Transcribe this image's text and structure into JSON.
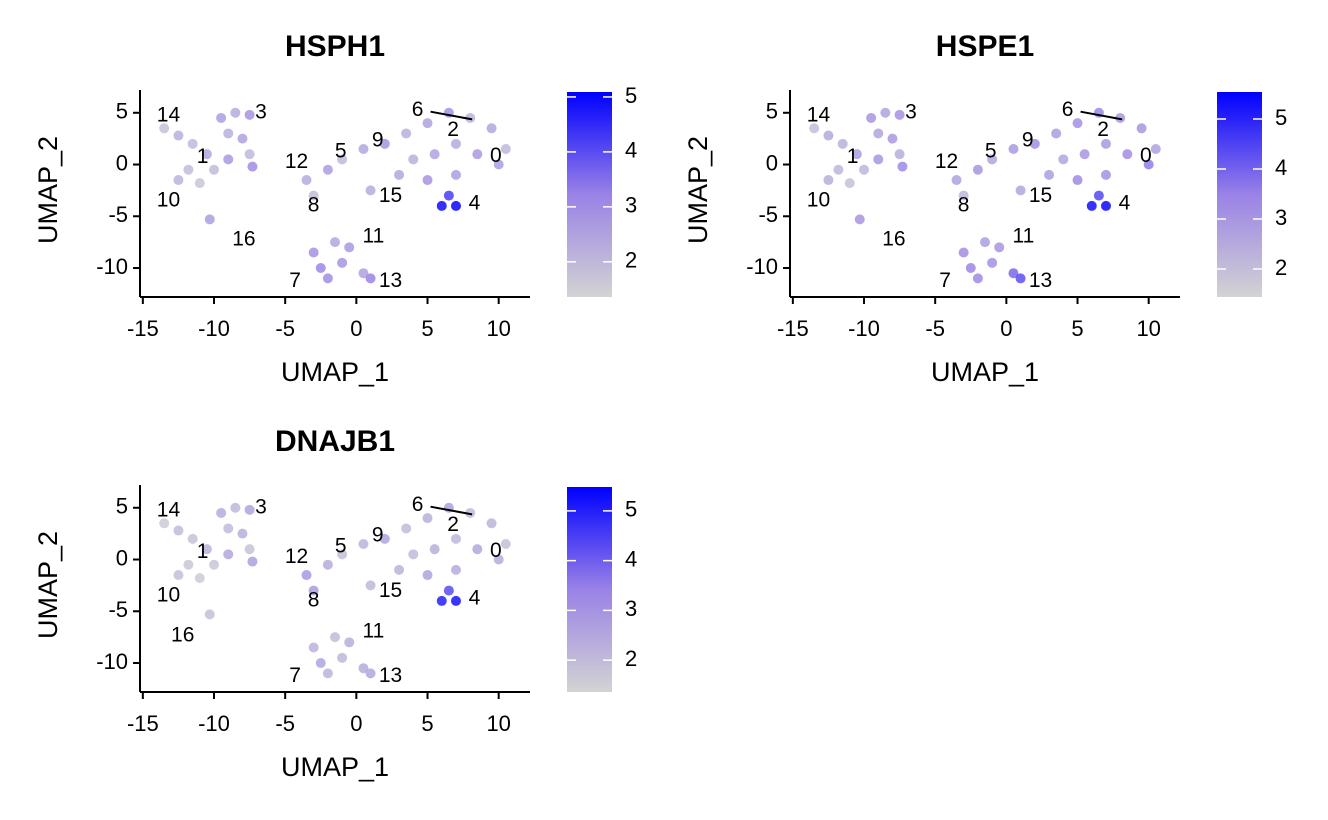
{
  "chart_data": [
    {
      "type": "scatter",
      "title": "HSPH1",
      "xlabel": "UMAP_1",
      "ylabel": "UMAP_2",
      "xlim": [
        -15.2,
        12.2
      ],
      "ylim": [
        -12.8,
        7.2
      ],
      "xticks": [
        -15,
        -10,
        -5,
        0,
        5,
        10
      ],
      "yticks": [
        5,
        0,
        -5,
        -10
      ],
      "clim": [
        1.36,
        5.09
      ],
      "cticks": [
        2,
        3,
        4,
        5
      ],
      "colors": [
        "#d3d3d3",
        "#9a82e6",
        "#0000ff"
      ],
      "x": [
        -13.5,
        -12.5,
        -11.5,
        -10.5,
        -11.8,
        -12.5,
        -11,
        -9.5,
        -8.5,
        -7.5,
        -9,
        -8,
        -7.5,
        -9,
        -10,
        -7.3,
        -10.3,
        -3,
        -1.5,
        -0.5,
        -2.5,
        -1,
        0.5,
        -2,
        1,
        -3.5,
        -2,
        -1,
        0.5,
        2,
        3.5,
        5,
        6.5,
        8,
        9.5,
        10.5,
        10,
        8.5,
        7,
        5.5,
        4,
        3,
        5,
        7,
        6.5,
        6,
        7,
        -3,
        1
      ],
      "y": [
        3.5,
        2.8,
        2,
        1,
        -0.5,
        -1.5,
        -1.8,
        4.5,
        5,
        4.8,
        3,
        2.5,
        1,
        0.5,
        -0.5,
        -0.2,
        -5.3,
        -8.5,
        -7.5,
        -8,
        -10,
        -9.5,
        -10.5,
        -11,
        -11,
        -1.5,
        -0.5,
        0.5,
        1.5,
        2,
        3,
        4,
        5,
        4.5,
        3.5,
        1.5,
        0,
        1,
        2,
        1,
        0.5,
        -1,
        -1.5,
        -1,
        -3,
        -4,
        -4,
        -3,
        -2.5
      ],
      "values": [
        1.8,
        2.2,
        2.0,
        2.4,
        1.9,
        2.1,
        1.7,
        2.6,
        2.3,
        2.8,
        2.2,
        2.5,
        2.0,
        2.7,
        1.9,
        3.0,
        2.6,
        2.9,
        2.4,
        2.7,
        3.1,
        2.8,
        2.5,
        3.0,
        3.2,
        2.3,
        2.6,
        2.0,
        2.4,
        2.8,
        2.2,
        2.5,
        2.9,
        2.1,
        2.4,
        2.0,
        2.6,
        2.7,
        2.3,
        2.5,
        2.2,
        2.4,
        2.8,
        2.6,
        4.2,
        4.9,
        5.0,
        1.9,
        2.3
      ],
      "annotations": [
        {
          "text": "14",
          "x": -13.2,
          "y": 4.7
        },
        {
          "text": "3",
          "x": -6.7,
          "y": 5.0
        },
        {
          "text": "1",
          "x": -10.8,
          "y": 0.7
        },
        {
          "text": "10",
          "x": -13.2,
          "y": -3.5
        },
        {
          "text": "16",
          "x": -7.9,
          "y": -7.3
        },
        {
          "text": "12",
          "x": -4.2,
          "y": 0.2
        },
        {
          "text": "5",
          "x": -1.1,
          "y": 1.2
        },
        {
          "text": "9",
          "x": 1.5,
          "y": 2.3
        },
        {
          "text": "6",
          "x": 4.3,
          "y": 5.2
        },
        {
          "text": "2",
          "x": 6.8,
          "y": 3.3
        },
        {
          "text": "0",
          "x": 9.8,
          "y": 0.8
        },
        {
          "text": "15",
          "x": 2.4,
          "y": -3.1
        },
        {
          "text": "4",
          "x": 8.3,
          "y": -3.8
        },
        {
          "text": "8",
          "x": -3.0,
          "y": -4.0
        },
        {
          "text": "11",
          "x": 1.2,
          "y": -7.0
        },
        {
          "text": "7",
          "x": -4.3,
          "y": -11.3
        },
        {
          "text": "13",
          "x": 2.4,
          "y": -11.3
        }
      ]
    },
    {
      "type": "scatter",
      "title": "HSPE1",
      "xlabel": "UMAP_1",
      "ylabel": "UMAP_2",
      "xlim": [
        -15.2,
        12.2
      ],
      "ylim": [
        -12.8,
        7.2
      ],
      "xticks": [
        -15,
        -10,
        -5,
        0,
        5,
        10
      ],
      "yticks": [
        5,
        0,
        -5,
        -10
      ],
      "clim": [
        1.44,
        5.54
      ],
      "cticks": [
        2,
        3,
        4,
        5
      ],
      "colors": [
        "#d3d3d3",
        "#9a82e6",
        "#0000ff"
      ],
      "x": [
        -13.5,
        -12.5,
        -11.5,
        -10.5,
        -11.8,
        -12.5,
        -11,
        -9.5,
        -8.5,
        -7.5,
        -9,
        -8,
        -7.5,
        -9,
        -10,
        -7.3,
        -10.3,
        -3,
        -1.5,
        -0.5,
        -2.5,
        -1,
        0.5,
        -2,
        1,
        -3.5,
        -2,
        -1,
        0.5,
        2,
        3.5,
        5,
        6.5,
        8,
        9.5,
        10.5,
        10,
        8.5,
        7,
        5.5,
        4,
        3,
        5,
        7,
        6.5,
        6,
        7,
        -3,
        1
      ],
      "y": [
        3.5,
        2.8,
        2,
        1,
        -0.5,
        -1.5,
        -1.8,
        4.5,
        5,
        4.8,
        3,
        2.5,
        1,
        0.5,
        -0.5,
        -0.2,
        -5.3,
        -8.5,
        -7.5,
        -8,
        -10,
        -9.5,
        -10.5,
        -11,
        -11,
        -1.5,
        -0.5,
        0.5,
        1.5,
        2,
        3,
        4,
        5,
        4.5,
        3.5,
        1.5,
        0,
        1,
        2,
        1,
        0.5,
        -1,
        -1.5,
        -1,
        -3,
        -4,
        -4,
        -3,
        -2.5
      ],
      "values": [
        2.0,
        2.5,
        2.3,
        2.8,
        2.2,
        2.4,
        1.9,
        3.0,
        2.7,
        3.1,
        2.6,
        2.9,
        2.4,
        3.0,
        2.2,
        3.3,
        3.0,
        3.2,
        2.8,
        3.0,
        3.4,
        3.1,
        3.9,
        3.3,
        4.3,
        2.7,
        3.0,
        2.6,
        2.9,
        3.2,
        2.8,
        3.1,
        3.4,
        2.9,
        3.0,
        2.7,
        3.6,
        3.2,
        2.9,
        3.0,
        2.6,
        2.8,
        3.3,
        3.1,
        4.4,
        5.3,
        5.4,
        2.2,
        2.6
      ],
      "annotations": [
        {
          "text": "14",
          "x": -13.2,
          "y": 4.7
        },
        {
          "text": "3",
          "x": -6.7,
          "y": 5.0
        },
        {
          "text": "1",
          "x": -10.8,
          "y": 0.7
        },
        {
          "text": "10",
          "x": -13.2,
          "y": -3.5
        },
        {
          "text": "16",
          "x": -7.9,
          "y": -7.3
        },
        {
          "text": "12",
          "x": -4.2,
          "y": 0.2
        },
        {
          "text": "5",
          "x": -1.1,
          "y": 1.2
        },
        {
          "text": "9",
          "x": 1.5,
          "y": 2.3
        },
        {
          "text": "6",
          "x": 4.3,
          "y": 5.2
        },
        {
          "text": "2",
          "x": 6.8,
          "y": 3.3
        },
        {
          "text": "0",
          "x": 9.8,
          "y": 0.8
        },
        {
          "text": "15",
          "x": 2.4,
          "y": -3.1
        },
        {
          "text": "4",
          "x": 8.3,
          "y": -3.8
        },
        {
          "text": "8",
          "x": -3.0,
          "y": -4.0
        },
        {
          "text": "11",
          "x": 1.2,
          "y": -7.0
        },
        {
          "text": "7",
          "x": -4.3,
          "y": -11.3
        },
        {
          "text": "13",
          "x": 2.4,
          "y": -11.3
        }
      ]
    },
    {
      "type": "scatter",
      "title": "DNAJB1",
      "xlabel": "UMAP_1",
      "ylabel": "UMAP_2",
      "xlim": [
        -15.2,
        12.2
      ],
      "ylim": [
        -12.8,
        7.2
      ],
      "xticks": [
        -15,
        -10,
        -5,
        0,
        5,
        10
      ],
      "yticks": [
        5,
        0,
        -5,
        -10
      ],
      "clim": [
        1.36,
        5.48
      ],
      "cticks": [
        2,
        3,
        4,
        5
      ],
      "colors": [
        "#d3d3d3",
        "#9a82e6",
        "#0000ff"
      ],
      "x": [
        -13.5,
        -12.5,
        -11.5,
        -10.5,
        -11.8,
        -12.5,
        -11,
        -9.5,
        -8.5,
        -7.5,
        -9,
        -8,
        -7.5,
        -9,
        -10,
        -7.3,
        -10.3,
        -3,
        -1.5,
        -0.5,
        -2.5,
        -1,
        0.5,
        -2,
        1,
        -3.5,
        -2,
        -1,
        0.5,
        2,
        3.5,
        5,
        6.5,
        8,
        9.5,
        10.5,
        10,
        8.5,
        7,
        5.5,
        4,
        3,
        5,
        7,
        6.5,
        6,
        7,
        -3,
        1
      ],
      "y": [
        3.5,
        2.8,
        2,
        1,
        -0.5,
        -1.5,
        -1.8,
        4.5,
        5,
        4.8,
        3,
        2.5,
        1,
        0.5,
        -0.5,
        -0.2,
        -5.3,
        -8.5,
        -7.5,
        -8,
        -10,
        -9.5,
        -10.5,
        -11,
        -11,
        -1.5,
        -0.5,
        0.5,
        1.5,
        2,
        3,
        4,
        5,
        4.5,
        3.5,
        1.5,
        0,
        1,
        2,
        1,
        0.5,
        -1,
        -1.5,
        -1,
        -3,
        -4,
        -4,
        -3,
        -2.5
      ],
      "values": [
        1.6,
        2.0,
        1.8,
        2.2,
        1.7,
        1.9,
        1.6,
        2.4,
        2.1,
        2.6,
        2.0,
        2.3,
        1.8,
        2.5,
        1.7,
        2.7,
        1.9,
        2.2,
        2.0,
        2.3,
        2.6,
        2.1,
        2.4,
        2.2,
        2.5,
        2.9,
        2.4,
        1.9,
        2.2,
        2.6,
        2.0,
        2.3,
        2.7,
        2.0,
        2.2,
        1.9,
        2.4,
        2.5,
        2.1,
        2.3,
        2.0,
        2.2,
        2.6,
        2.4,
        4.3,
        5.0,
        5.2,
        2.8,
        2.1
      ],
      "annotations": [
        {
          "text": "14",
          "x": -13.2,
          "y": 4.7
        },
        {
          "text": "3",
          "x": -6.7,
          "y": 5.0
        },
        {
          "text": "1",
          "x": -10.8,
          "y": 0.7
        },
        {
          "text": "10",
          "x": -13.2,
          "y": -3.5
        },
        {
          "text": "16",
          "x": -12.2,
          "y": -7.4
        },
        {
          "text": "12",
          "x": -4.2,
          "y": 0.2
        },
        {
          "text": "5",
          "x": -1.1,
          "y": 1.2
        },
        {
          "text": "9",
          "x": 1.5,
          "y": 2.3
        },
        {
          "text": "6",
          "x": 4.3,
          "y": 5.2
        },
        {
          "text": "2",
          "x": 6.8,
          "y": 3.3
        },
        {
          "text": "0",
          "x": 9.8,
          "y": 0.8
        },
        {
          "text": "15",
          "x": 2.4,
          "y": -3.1
        },
        {
          "text": "4",
          "x": 8.3,
          "y": -3.8
        },
        {
          "text": "8",
          "x": -3.0,
          "y": -4.0
        },
        {
          "text": "11",
          "x": 1.2,
          "y": -7.0
        },
        {
          "text": "7",
          "x": -4.3,
          "y": -11.3
        },
        {
          "text": "13",
          "x": 2.4,
          "y": -11.3
        }
      ]
    }
  ]
}
